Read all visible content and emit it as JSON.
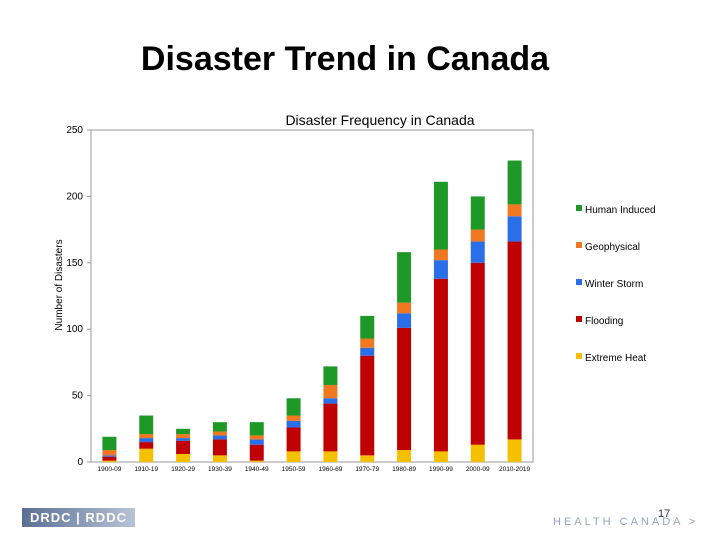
{
  "slide": {
    "title": "Disaster Trend in Canada",
    "footer_logo": "DRDC | RDDC",
    "footer_org": "HEALTH CANADA >",
    "page_number": "17"
  },
  "chart_data": {
    "type": "bar",
    "stacked": true,
    "title": "Disaster Frequency in Canada",
    "xlabel": "",
    "ylabel": "Number of Disasters",
    "ylim": [
      0,
      250
    ],
    "yticks": [
      0,
      50,
      100,
      150,
      200,
      250
    ],
    "grid": false,
    "legend_position": "right",
    "categories": [
      "1900-09",
      "1910-19",
      "1920-29",
      "1930-39",
      "1940-49",
      "1950-59",
      "1960-69",
      "1970-79",
      "1980-89",
      "1990-99",
      "2000-09",
      "2010-2019"
    ],
    "series": [
      {
        "name": "Extreme Heat",
        "color": "#f5c000",
        "values": [
          1,
          10,
          6,
          5,
          1,
          8,
          8,
          5,
          9,
          8,
          13,
          17
        ]
      },
      {
        "name": "Flooding",
        "color": "#c00000",
        "values": [
          3,
          5,
          10,
          12,
          12,
          18,
          36,
          75,
          92,
          130,
          137,
          149
        ]
      },
      {
        "name": "Winter Storm",
        "color": "#2a6ee8",
        "values": [
          1,
          3,
          2,
          3,
          4,
          5,
          4,
          6,
          11,
          14,
          16,
          19
        ]
      },
      {
        "name": "Geophysical",
        "color": "#f07820",
        "values": [
          4,
          3,
          3,
          3,
          3,
          4,
          10,
          7,
          8,
          8,
          9,
          9
        ]
      },
      {
        "name": "Human Induced",
        "color": "#1e9928",
        "values": [
          10,
          14,
          4,
          7,
          10,
          13,
          14,
          17,
          38,
          51,
          25,
          33
        ]
      }
    ],
    "legend_order": [
      "Human Induced",
      "Geophysical",
      "Winter Storm",
      "Flooding",
      "Extreme Heat"
    ]
  }
}
